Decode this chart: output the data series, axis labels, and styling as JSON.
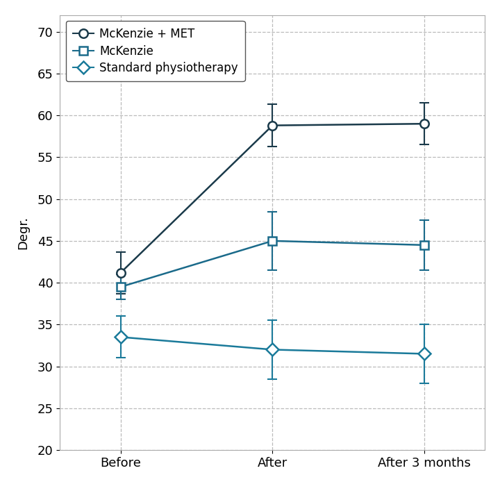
{
  "title": "",
  "ylabel": "Degr.",
  "xlabels": [
    "Before",
    "After",
    "After 3 months"
  ],
  "ylim": [
    20,
    72
  ],
  "yticks": [
    20,
    25,
    30,
    35,
    40,
    45,
    50,
    55,
    60,
    65,
    70
  ],
  "series": [
    {
      "label": "McKenzie + MET",
      "color": "#1a3a4a",
      "marker": "o",
      "values": [
        41.2,
        58.8,
        59.0
      ],
      "errors": [
        2.5,
        2.5,
        2.5
      ]
    },
    {
      "label": "McKenzie",
      "color": "#1a6a8a",
      "marker": "s",
      "values": [
        39.5,
        45.0,
        44.5
      ],
      "errors": [
        1.5,
        3.5,
        3.0
      ]
    },
    {
      "label": "Standard physiotherapy",
      "color": "#1a7a9a",
      "marker": "D",
      "values": [
        33.5,
        32.0,
        31.5
      ],
      "errors": [
        2.5,
        3.5,
        3.5
      ]
    }
  ],
  "grid_color": "#bbbbbb",
  "bg_color": "#ffffff",
  "legend_loc": "upper left",
  "figsize": [
    7.2,
    7.2
  ],
  "dpi": 100
}
